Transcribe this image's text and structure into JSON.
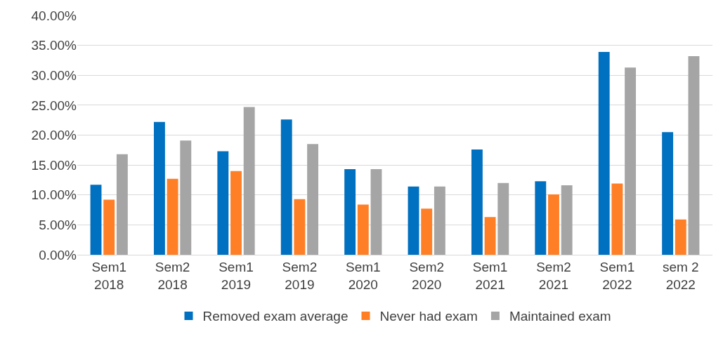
{
  "chart_data": {
    "type": "bar",
    "categories": [
      "Sem1\n2018",
      "Sem2\n2018",
      "Sem1\n2019",
      "Sem2\n2019",
      "Sem1\n2020",
      "Sem2\n2020",
      "Sem1\n2021",
      "Sem2\n2021",
      "Sem1\n2022",
      "sem 2\n2022"
    ],
    "series": [
      {
        "name": "Removed exam average",
        "color": "#0070c0",
        "values": [
          11.7,
          22.2,
          17.3,
          22.6,
          14.3,
          11.4,
          17.6,
          12.3,
          33.9,
          20.5
        ]
      },
      {
        "name": "Never had exam",
        "color": "#ff7f27",
        "values": [
          9.2,
          12.7,
          14.0,
          9.3,
          8.4,
          7.7,
          6.3,
          10.1,
          11.9,
          5.9
        ]
      },
      {
        "name": "Maintained exam",
        "color": "#a5a5a5",
        "values": [
          16.8,
          19.1,
          24.7,
          18.5,
          14.3,
          11.4,
          12.0,
          11.6,
          31.3,
          33.2
        ]
      }
    ],
    "ylim": [
      0,
      40
    ],
    "yticks": [
      {
        "value": 0,
        "label": "0.00%"
      },
      {
        "value": 5,
        "label": "5.00%"
      },
      {
        "value": 10,
        "label": "10.00%"
      },
      {
        "value": 15,
        "label": "15.00%"
      },
      {
        "value": 20,
        "label": "20.00%"
      },
      {
        "value": 25,
        "label": "25.00%"
      },
      {
        "value": 30,
        "label": "30.00%"
      },
      {
        "value": 35,
        "label": "35.00%"
      },
      {
        "value": 40,
        "label": "40.00%"
      }
    ],
    "grid": "y",
    "legend": "bottom"
  }
}
